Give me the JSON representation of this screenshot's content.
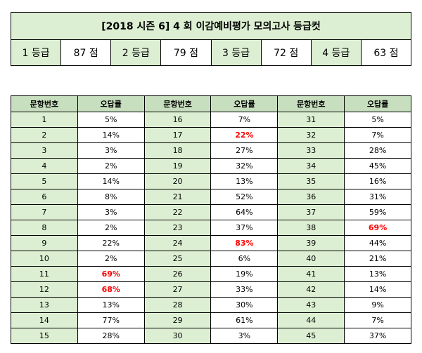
{
  "cutoff": {
    "title": "[2018 시즌 6] 4 회  이감예비평가  모의고사  등급컷",
    "grades": [
      {
        "label": "1 등급",
        "score": "87 점"
      },
      {
        "label": "2 등급",
        "score": "79 점"
      },
      {
        "label": "3 등급",
        "score": "72 점"
      },
      {
        "label": "4 등급",
        "score": "63 점"
      }
    ]
  },
  "error_rates": {
    "header_no": "문항번호",
    "header_rate": "오답률",
    "highlight_color": "#ff0000",
    "items": [
      {
        "no": "1",
        "rate": "5%"
      },
      {
        "no": "2",
        "rate": "14%"
      },
      {
        "no": "3",
        "rate": "3%"
      },
      {
        "no": "4",
        "rate": "2%"
      },
      {
        "no": "5",
        "rate": "14%"
      },
      {
        "no": "6",
        "rate": "8%"
      },
      {
        "no": "7",
        "rate": "3%"
      },
      {
        "no": "8",
        "rate": "2%"
      },
      {
        "no": "9",
        "rate": "22%"
      },
      {
        "no": "10",
        "rate": "2%"
      },
      {
        "no": "11",
        "rate": "69%",
        "highlight": true
      },
      {
        "no": "12",
        "rate": "68%",
        "highlight": true
      },
      {
        "no": "13",
        "rate": "13%"
      },
      {
        "no": "14",
        "rate": "77%"
      },
      {
        "no": "15",
        "rate": "28%"
      },
      {
        "no": "16",
        "rate": "7%"
      },
      {
        "no": "17",
        "rate": "22%",
        "highlight": true
      },
      {
        "no": "18",
        "rate": "27%"
      },
      {
        "no": "19",
        "rate": "32%"
      },
      {
        "no": "20",
        "rate": "13%"
      },
      {
        "no": "21",
        "rate": "52%"
      },
      {
        "no": "22",
        "rate": "64%"
      },
      {
        "no": "23",
        "rate": "37%"
      },
      {
        "no": "24",
        "rate": "83%",
        "highlight": true
      },
      {
        "no": "25",
        "rate": "6%"
      },
      {
        "no": "26",
        "rate": "19%"
      },
      {
        "no": "27",
        "rate": "33%"
      },
      {
        "no": "28",
        "rate": "30%"
      },
      {
        "no": "29",
        "rate": "61%"
      },
      {
        "no": "30",
        "rate": "3%"
      },
      {
        "no": "31",
        "rate": "5%"
      },
      {
        "no": "32",
        "rate": "7%"
      },
      {
        "no": "33",
        "rate": "28%"
      },
      {
        "no": "34",
        "rate": "45%"
      },
      {
        "no": "35",
        "rate": "16%"
      },
      {
        "no": "36",
        "rate": "31%"
      },
      {
        "no": "37",
        "rate": "59%"
      },
      {
        "no": "38",
        "rate": "69%",
        "highlight": true
      },
      {
        "no": "39",
        "rate": "44%"
      },
      {
        "no": "40",
        "rate": "21%"
      },
      {
        "no": "41",
        "rate": "13%"
      },
      {
        "no": "42",
        "rate": "14%"
      },
      {
        "no": "43",
        "rate": "9%"
      },
      {
        "no": "44",
        "rate": "7%"
      },
      {
        "no": "45",
        "rate": "37%"
      }
    ]
  }
}
